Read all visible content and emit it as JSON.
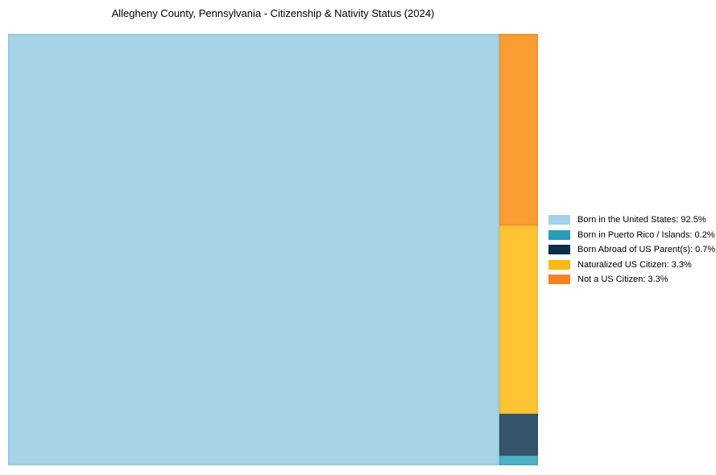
{
  "title": "Allegheny County, Pennsylvania - Citizenship & Nativity Status (2024)",
  "chart_data": {
    "type": "treemap",
    "title": "Allegheny County, Pennsylvania - Citizenship & Nativity Status (2024)",
    "unit": "percent",
    "categories": [
      "Born in the United States",
      "Born in Puerto Rico / Islands",
      "Born Abroad of US Parent(s)",
      "Naturalized US Citizen",
      "Not a US Citizen"
    ],
    "values": [
      92.5,
      0.2,
      0.7,
      3.3,
      3.3
    ],
    "legend_position": "right",
    "layout": "Born in the United States fills full-height block on left (92.5% of width); remaining categories stacked in right column top-to-bottom: Not a US Citizen, Naturalized US Citizen, Born Abroad of US Parent(s), Born in Puerto Rico / Islands"
  },
  "treemap": {
    "blocks": [
      {
        "name": "Born in the United States",
        "value_pct": 92.5,
        "fill": "#a6d3e8"
      },
      {
        "name": "Not a US Citizen",
        "value_pct": 3.3,
        "fill": "#fa9e33"
      },
      {
        "name": "Naturalized US Citizen",
        "value_pct": 3.3,
        "fill": "#fec433"
      },
      {
        "name": "Born Abroad of US Parent(s)",
        "value_pct": 0.7,
        "fill": "#36566c"
      },
      {
        "name": "Born in Puerto Rico / Islands",
        "value_pct": 0.2,
        "fill": "#4db2c5"
      }
    ]
  },
  "legend": {
    "items": [
      {
        "label": "Born in the United States: 92.5%",
        "color": "#a3d2e9"
      },
      {
        "label": "Born in Puerto Rico / Islands: 0.2%",
        "color": "#2a9db8"
      },
      {
        "label": "Born Abroad of US Parent(s): 0.7%",
        "color": "#0e2e47"
      },
      {
        "label": "Naturalized US Citizen: 3.3%",
        "color": "#fdb813"
      },
      {
        "label": "Not a US Citizen: 3.3%",
        "color": "#f58220"
      }
    ]
  }
}
